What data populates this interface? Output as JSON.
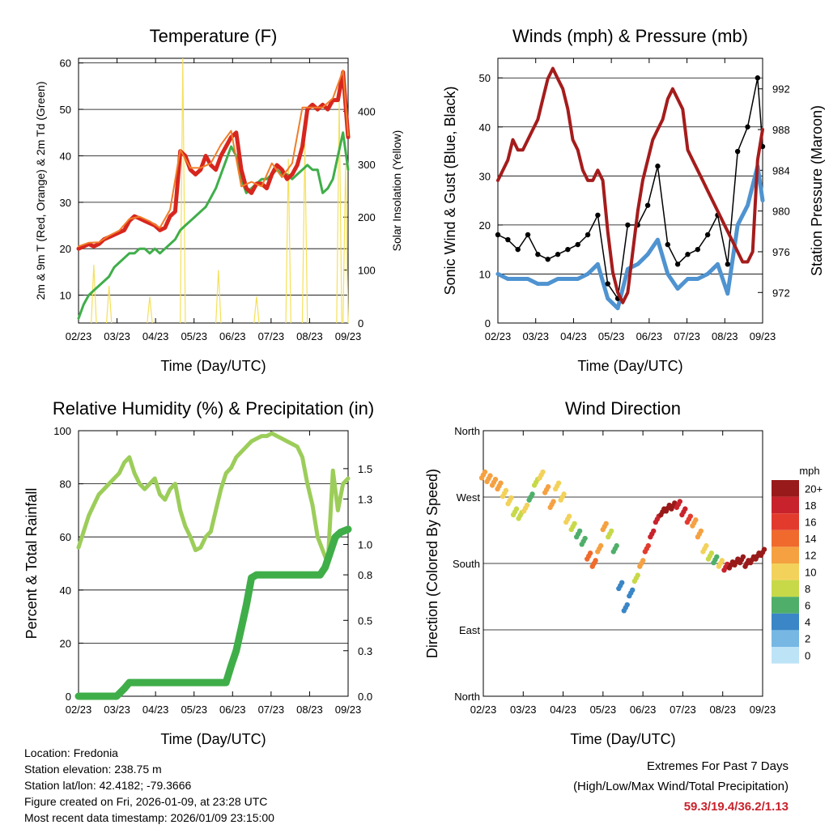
{
  "x_ticks": [
    "02/23",
    "03/23",
    "04/23",
    "05/23",
    "06/23",
    "07/23",
    "08/23",
    "09/23"
  ],
  "x_label": "Time (Day/UTC)",
  "colors": {
    "temp2m": "#d7261e",
    "temp9m": "#f07d28",
    "dewpoint": "#3fae49",
    "solar": "#f5e05a",
    "gust": "#000000",
    "wind": "#4f93d0",
    "pressure": "#a51c1c",
    "rh": "#9ccd5a",
    "precip": "#3fae49"
  },
  "chart_data": [
    {
      "id": "temperature",
      "type": "line",
      "title": "Temperature (F)",
      "xlabel": "Time (Day/UTC)",
      "ylabel": "2m & 9m T (Red, Orange) & 2m Td (Green)",
      "y2label": "Solar Insolation (Yellow)",
      "ylim": [
        4,
        61
      ],
      "yticks": [
        10,
        20,
        30,
        40,
        50,
        60
      ],
      "y2lim": [
        0,
        500
      ],
      "y2ticks": [
        0,
        100,
        200,
        300,
        400
      ],
      "series": [
        {
          "name": "2m T",
          "color": "#d7261e",
          "x": [
            0,
            4,
            8,
            12,
            16,
            20,
            24,
            28,
            32,
            36,
            40,
            44,
            48,
            52,
            56,
            60,
            64,
            68,
            72,
            76,
            80,
            84,
            88,
            92,
            96,
            100,
            104,
            108,
            112,
            116,
            120,
            124,
            128,
            132,
            136,
            140,
            144,
            148,
            152,
            156,
            160,
            164,
            168,
            172,
            176,
            180,
            184,
            188,
            192,
            196,
            200,
            204,
            208,
            212
          ],
          "y": [
            20,
            20.5,
            21,
            20.5,
            21,
            22,
            22.5,
            23,
            23.5,
            24,
            26,
            27,
            26.5,
            26,
            25.5,
            25,
            24,
            24.5,
            27,
            28,
            41,
            40,
            37,
            36,
            37,
            40,
            38,
            37,
            40,
            42,
            44,
            45,
            37,
            33,
            32,
            34,
            34,
            33,
            36,
            38,
            37,
            35,
            36,
            38,
            42,
            50,
            51,
            50,
            51,
            50,
            52,
            52,
            58,
            44
          ]
        },
        {
          "name": "9m T",
          "color": "#f07d28",
          "x": [
            0,
            8,
            16,
            24,
            32,
            40,
            48,
            56,
            64,
            72,
            80,
            88,
            96,
            104,
            112,
            120,
            128,
            136,
            144,
            152,
            160,
            168,
            176,
            184,
            192,
            200,
            208,
            212
          ],
          "y": [
            20.5,
            21.3,
            21.4,
            22.8,
            23.9,
            26.4,
            26.9,
            25.9,
            24.5,
            28.4,
            41.3,
            37.4,
            37.4,
            38.4,
            42.4,
            45.4,
            33.4,
            34.4,
            33.4,
            38.4,
            35.4,
            38.4,
            50.4,
            50.4,
            50.4,
            52.4,
            58.4,
            44.4
          ]
        },
        {
          "name": "2m Td",
          "color": "#3fae49",
          "x": [
            0,
            4,
            8,
            12,
            16,
            20,
            24,
            28,
            32,
            36,
            40,
            44,
            48,
            52,
            56,
            60,
            64,
            68,
            72,
            76,
            80,
            84,
            88,
            92,
            96,
            100,
            104,
            108,
            112,
            116,
            120,
            124,
            128,
            132,
            136,
            140,
            144,
            148,
            152,
            156,
            160,
            164,
            168,
            172,
            176,
            180,
            184,
            188,
            192,
            196,
            200,
            204,
            208,
            212
          ],
          "y": [
            5,
            8,
            10,
            11,
            12,
            13,
            14,
            16,
            17,
            18,
            19,
            19,
            20,
            20,
            19,
            20,
            19,
            20,
            21,
            22,
            24,
            25,
            26,
            27,
            28,
            29,
            31,
            33,
            36,
            39,
            42,
            40,
            35,
            32,
            33,
            34,
            35,
            35,
            36,
            37,
            36,
            36,
            35,
            36,
            37,
            38,
            37,
            37,
            32,
            33,
            35,
            40,
            45,
            37
          ]
        },
        {
          "name": "Solar",
          "color": "#f5e05a",
          "axis": "y2",
          "peaks": [
            [
              12,
              110
            ],
            [
              24,
              70
            ],
            [
              56,
              50
            ],
            [
              82,
              500
            ],
            [
              110,
              100
            ],
            [
              140,
              50
            ],
            [
              165,
              310
            ],
            [
              178,
              340
            ],
            [
              205,
              420
            ],
            [
              210,
              300
            ]
          ]
        }
      ]
    },
    {
      "id": "winds",
      "type": "line",
      "title": "Winds (mph) & Pressure (mb)",
      "xlabel": "Time (Day/UTC)",
      "ylabel": "Sonic Wind & Gust (Blue, Black)",
      "y2label": "Station Pressure (Maroon)",
      "ylim": [
        0,
        54
      ],
      "yticks": [
        0,
        10,
        20,
        30,
        40,
        50
      ],
      "y2lim": [
        969,
        995
      ],
      "y2ticks": [
        972,
        976,
        980,
        984,
        988,
        992
      ],
      "series": [
        {
          "name": "Gust",
          "color": "#000000",
          "x": [
            0,
            8,
            16,
            24,
            32,
            40,
            48,
            56,
            64,
            72,
            80,
            88,
            96,
            104,
            112,
            120,
            128,
            136,
            144,
            152,
            160,
            168,
            176,
            184,
            192,
            200,
            208,
            212
          ],
          "y": [
            18,
            17,
            15,
            18,
            14,
            13,
            14,
            15,
            16,
            18,
            22,
            8,
            5,
            20,
            20,
            24,
            32,
            16,
            12,
            14,
            15,
            18,
            22,
            12,
            35,
            40,
            50,
            36
          ]
        },
        {
          "name": "Wind",
          "color": "#4f93d0",
          "x": [
            0,
            8,
            16,
            24,
            32,
            40,
            48,
            56,
            64,
            72,
            80,
            88,
            96,
            104,
            112,
            120,
            128,
            136,
            144,
            152,
            160,
            168,
            176,
            184,
            192,
            200,
            208,
            212
          ],
          "y": [
            10,
            9,
            9,
            9,
            8,
            8,
            9,
            9,
            9,
            10,
            12,
            5,
            3,
            11,
            12,
            14,
            17,
            10,
            7,
            9,
            9,
            10,
            12,
            6,
            20,
            24,
            32,
            25
          ]
        },
        {
          "name": "Pressure",
          "color": "#a51c1c",
          "axis": "y2",
          "x": [
            0,
            4,
            8,
            12,
            16,
            20,
            24,
            28,
            32,
            36,
            40,
            44,
            48,
            52,
            56,
            60,
            64,
            68,
            72,
            76,
            80,
            84,
            88,
            92,
            96,
            100,
            104,
            108,
            112,
            116,
            120,
            124,
            128,
            132,
            136,
            140,
            144,
            148,
            152,
            156,
            160,
            164,
            168,
            172,
            176,
            180,
            184,
            188,
            192,
            196,
            200,
            204,
            208,
            212
          ],
          "y": [
            983,
            984,
            985,
            987,
            986,
            986,
            987,
            988,
            989,
            991,
            993,
            994,
            993,
            992,
            990,
            987,
            986,
            984,
            983,
            983,
            984,
            983,
            978,
            974,
            972,
            971,
            972,
            976,
            980,
            983,
            985,
            987,
            988,
            989,
            991,
            992,
            991,
            990,
            986,
            985,
            984,
            983,
            982,
            981,
            980,
            979,
            978,
            977,
            976,
            975,
            975,
            976,
            985,
            988
          ]
        }
      ]
    },
    {
      "id": "humidity",
      "type": "line",
      "title": "Relative Humidity (%) & Precipitation (in)",
      "xlabel": "Time (Day/UTC)",
      "ylabel": "Percent & Total Rainfall",
      "ylim": [
        0,
        100
      ],
      "yticks": [
        0,
        20,
        40,
        60,
        80,
        100
      ],
      "y2lim": [
        0,
        1.75
      ],
      "y2ticks": [
        0.0,
        0.3,
        0.5,
        0.8,
        1.0,
        1.3,
        1.5
      ],
      "series": [
        {
          "name": "RH",
          "color": "#9ccd5a",
          "x": [
            0,
            4,
            8,
            12,
            16,
            20,
            24,
            28,
            32,
            36,
            40,
            44,
            48,
            52,
            56,
            60,
            64,
            68,
            72,
            76,
            80,
            84,
            88,
            92,
            96,
            100,
            104,
            108,
            112,
            116,
            120,
            124,
            128,
            132,
            136,
            140,
            144,
            148,
            152,
            156,
            160,
            164,
            168,
            172,
            176,
            180,
            184,
            188,
            192,
            196,
            200,
            204,
            208,
            212
          ],
          "y": [
            56,
            62,
            68,
            72,
            76,
            78,
            80,
            82,
            84,
            88,
            90,
            84,
            80,
            78,
            80,
            82,
            76,
            74,
            78,
            80,
            70,
            64,
            60,
            55,
            56,
            60,
            62,
            70,
            78,
            84,
            86,
            90,
            92,
            94,
            96,
            97,
            98,
            98,
            99,
            98,
            97,
            96,
            95,
            94,
            90,
            80,
            72,
            60,
            55,
            50,
            85,
            70,
            80,
            82
          ]
        },
        {
          "name": "Precip",
          "color": "#3fae49",
          "axis": "y2",
          "x": [
            0,
            30,
            36,
            40,
            44,
            48,
            52,
            60,
            80,
            100,
            110,
            116,
            120,
            124,
            128,
            132,
            136,
            140,
            150,
            160,
            170,
            180,
            190,
            194,
            198,
            202,
            206,
            212
          ],
          "y": [
            0,
            0,
            0.05,
            0.09,
            0.09,
            0.09,
            0.09,
            0.09,
            0.09,
            0.09,
            0.09,
            0.09,
            0.2,
            0.3,
            0.45,
            0.6,
            0.78,
            0.8,
            0.8,
            0.8,
            0.8,
            0.8,
            0.8,
            0.85,
            0.95,
            1.05,
            1.08,
            1.1
          ]
        }
      ]
    },
    {
      "id": "direction",
      "type": "scatter",
      "title": "Wind Direction",
      "xlabel": "Time (Day/UTC)",
      "ylabel": "Direction (Colored By Speed)",
      "yticks": [
        "North",
        "East",
        "South",
        "West",
        "North"
      ],
      "ylim": [
        0,
        360
      ],
      "legend_title": "mph",
      "legend_labels": [
        "20+",
        "18",
        "16",
        "14",
        "12",
        "10",
        "8",
        "6",
        "4",
        "2",
        "0"
      ],
      "legend_colors": [
        "#991a1a",
        "#c8232c",
        "#e23b2e",
        "#f06a2d",
        "#f5a142",
        "#f3d25c",
        "#c7d949",
        "#4faf6a",
        "#3b86c6",
        "#76b7e4",
        "#bde3f7"
      ],
      "x": [
        0,
        4,
        8,
        12,
        16,
        20,
        24,
        28,
        32,
        36,
        40,
        44,
        48,
        52,
        56,
        60,
        64,
        68,
        72,
        76,
        80,
        84,
        88,
        92,
        96,
        100,
        104,
        108,
        112,
        116,
        120,
        124,
        128,
        132,
        136,
        140,
        144,
        148,
        152,
        156,
        160,
        164,
        168,
        172,
        176,
        180,
        184,
        188,
        192,
        196,
        200,
        204,
        208,
        212
      ],
      "y": [
        300,
        295,
        290,
        285,
        275,
        265,
        250,
        245,
        255,
        270,
        290,
        300,
        280,
        260,
        285,
        270,
        240,
        230,
        220,
        210,
        190,
        180,
        200,
        230,
        220,
        200,
        150,
        120,
        140,
        160,
        180,
        200,
        220,
        240,
        250,
        255,
        258,
        260,
        250,
        240,
        235,
        220,
        200,
        190,
        185,
        180,
        175,
        178,
        182,
        185,
        180,
        185,
        190,
        195
      ],
      "s": [
        12,
        12,
        11,
        12,
        10,
        9,
        8,
        7,
        9,
        6,
        8,
        9,
        11,
        12,
        10,
        9,
        9,
        7,
        6,
        5,
        13,
        14,
        12,
        11,
        8,
        6,
        4,
        3,
        4,
        7,
        12,
        16,
        17,
        18,
        20,
        20,
        19,
        18,
        17,
        16,
        12,
        11,
        9,
        8,
        6,
        9,
        18,
        20,
        21,
        20,
        19,
        20,
        20,
        20
      ]
    }
  ],
  "footer": {
    "location": "Location: Fredonia",
    "elevation": "Station elevation: 238.75 m",
    "latlon": "Station lat/lon: 42.4182; -79.3666",
    "created": "Figure created on Fri, 2026-01-09, at 23:28 UTC",
    "recent": "Most recent data timestamp: 2026/01/09 23:15:00"
  },
  "extremes": {
    "title": "Extremes For Past 7 Days",
    "subtitle": "(High/Low/Max Wind/Total Precipitation)",
    "values": "59.3/19.4/36.2/1.13"
  }
}
